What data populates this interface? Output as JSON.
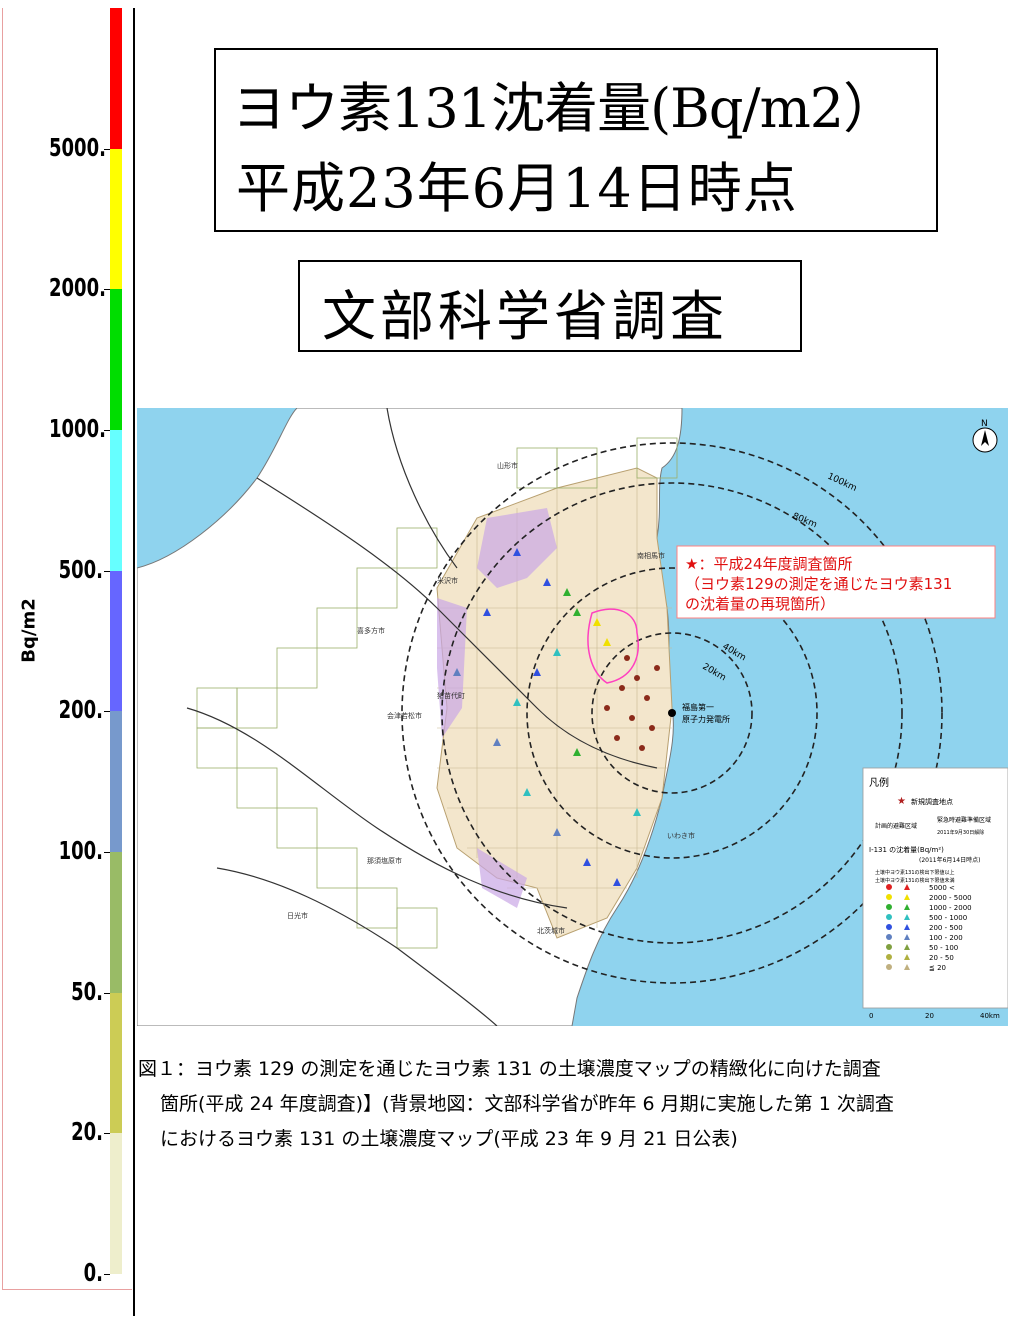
{
  "title": {
    "line1": "ヨウ素131沈着量(Bq/m2）",
    "line2": "平成23年6月14日時点"
  },
  "source_label": "文部科学省調査",
  "color_scale": {
    "unit": "Bq/m2",
    "ticks": [
      "5000.",
      "2000.",
      "1000.",
      "500.",
      "200.",
      "100.",
      "50.",
      "20.",
      "0."
    ],
    "colors": [
      "#ff0000",
      "#ffff00",
      "#00dd00",
      "#66ffff",
      "#6666ff",
      "#7799cc",
      "#99bb66",
      "#cccc55",
      "#eeeecc"
    ]
  },
  "map": {
    "callout": {
      "line1": "★：平成24年度調査箇所",
      "line2": "（ヨウ素129の測定を通じたヨウ素131",
      "line3": "の沈着量の再現箇所）"
    },
    "distance_labels": [
      "100km",
      "80km",
      "40km",
      "20km"
    ],
    "plant_label_1": "福島第一",
    "plant_label_2": "原子力発電所",
    "place_labels": [
      "山形市",
      "米沢市",
      "喜多方市",
      "会津若松市",
      "猪苗代町",
      "那須塩原市",
      "日光市",
      "いわき市",
      "北茨城市",
      "南相馬市"
    ],
    "north_label": "N",
    "legend": {
      "title": "凡例",
      "new_points": "新規調査地点",
      "zone1": "計画的避難区域",
      "zone2": "緊急時避難準備区域",
      "zone_date": "2011年9月30日解除",
      "i131_title": "I-131 の沈着量(Bq/m²)",
      "i131_date": "(2011年6月14日時点)",
      "col1": "土壌中ヨウ素131の検出下限値以上",
      "col2": "土壌中ヨウ素131の検出下限値未満",
      "ranges": [
        "5000 <",
        "2000 - 5000",
        "1000 - 2000",
        "500 - 1000",
        "200 - 500",
        "100 - 200",
        "50 - 100",
        "20 - 50",
        "≦ 20"
      ],
      "range_colors": [
        "#e02020",
        "#f0e000",
        "#30b030",
        "#30c0c0",
        "#3050e0",
        "#6080c0",
        "#80a040",
        "#b0b040",
        "#c0b080"
      ],
      "scale": [
        "0",
        "20",
        "40km"
      ]
    }
  },
  "caption": {
    "line1": "図１：ヨウ素 129 の測定を通じたヨウ素 131 の土壌濃度マップの精緻化に向けた調査",
    "line2": "箇所(平成 24 年度調査)】(背景地図：文部科学省が昨年 6 月期に実施した第 1 次調査",
    "line3": "におけるヨウ素 131 の土壌濃度マップ(平成 23 年 9 月 21 日公表)"
  }
}
